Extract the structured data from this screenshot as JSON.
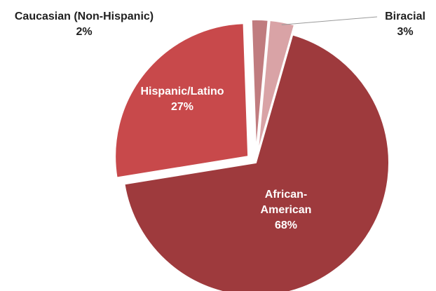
{
  "chart_data": {
    "type": "pie",
    "title": "",
    "slices": [
      {
        "label_lines": [
          "African-",
          "American"
        ],
        "percent_label": "68%",
        "value": 68,
        "color": "#9E3A3D",
        "label_color": "#ffffff"
      },
      {
        "label_lines": [
          "Hispanic/Latino"
        ],
        "percent_label": "27%",
        "value": 27,
        "color": "#C8494B",
        "label_color": "#ffffff"
      },
      {
        "label_lines": [
          "Caucasian (Non-Hispanic)"
        ],
        "percent_label": "2%",
        "value": 2,
        "color": "#C07C7F",
        "label_color": "#1f1f1f"
      },
      {
        "label_lines": [
          "Biracial"
        ],
        "percent_label": "3%",
        "value": 3,
        "color": "#D9A3A6",
        "label_color": "#1f1f1f"
      }
    ],
    "legend": "none",
    "data_labels": "category-and-percent"
  }
}
